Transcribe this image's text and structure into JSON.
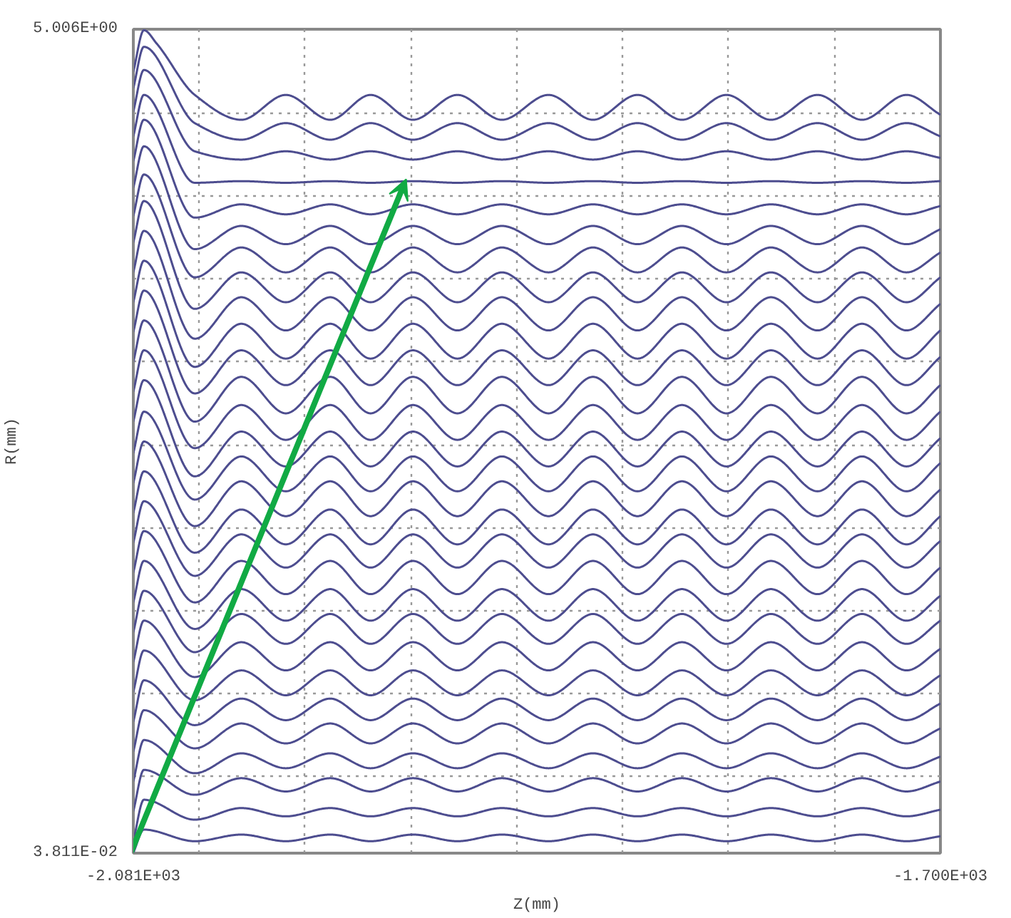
{
  "chart_data": {
    "type": "line",
    "xlabel": "Z(mm)",
    "ylabel": "R(mm)",
    "grid": true,
    "xlim": [
      -2081,
      -1700
    ],
    "ylim": [
      0.03811,
      5.006
    ],
    "xticks": [
      {
        "value": -2081,
        "label": "-2.081E+03"
      },
      {
        "value": -2050,
        "label": null
      },
      {
        "value": -2000,
        "label": null
      },
      {
        "value": -1950,
        "label": null
      },
      {
        "value": -1900,
        "label": null
      },
      {
        "value": -1850,
        "label": null
      },
      {
        "value": -1800,
        "label": null
      },
      {
        "value": -1750,
        "label": null
      },
      {
        "value": -1700,
        "label": "-1.700E+03"
      }
    ],
    "yticks": [
      {
        "value": 0.03811,
        "label": "3.811E-02"
      },
      {
        "value": 0.5,
        "label": null
      },
      {
        "value": 1.0,
        "label": null
      },
      {
        "value": 1.5,
        "label": null
      },
      {
        "value": 2.0,
        "label": null
      },
      {
        "value": 2.5,
        "label": null
      },
      {
        "value": 3.0,
        "label": null
      },
      {
        "value": 3.5,
        "label": null
      },
      {
        "value": 4.0,
        "label": null
      },
      {
        "value": 4.5,
        "label": null
      },
      {
        "value": 5.006,
        "label": "5.006E+00"
      }
    ],
    "x": [
      -2081,
      -2076,
      -2052,
      -2030,
      -2009,
      -1988,
      -1969,
      -1949,
      -1928,
      -1907,
      -1885,
      -1864,
      -1843,
      -1822,
      -1801,
      -1780,
      -1758,
      -1737,
      -1716,
      -1700
    ],
    "series": [
      {
        "color": "#4d4d8f",
        "x": [
          -2081,
          -2076,
          -2070,
          -2052,
          -2030,
          -2009,
          -1988,
          -1969,
          -1949,
          -1928,
          -1907,
          -1885,
          -1864,
          -1843,
          -1822,
          -1801,
          -1780,
          -1758,
          -1737,
          -1716,
          -1700
        ],
        "values": [
          4.75,
          5.0,
          4.92,
          4.61,
          4.46,
          4.61,
          4.46,
          4.61,
          4.46,
          4.61,
          4.46,
          4.61,
          4.46,
          4.61,
          4.46,
          4.61,
          4.46,
          4.61,
          4.46,
          4.61,
          4.49
        ]
      },
      {
        "color": "#4d4d8f",
        "values": [
          4.65,
          4.9,
          4.44,
          4.34,
          4.44,
          4.34,
          4.44,
          4.34,
          4.44,
          4.34,
          4.44,
          4.34,
          4.44,
          4.34,
          4.44,
          4.34,
          4.44,
          4.34,
          4.44,
          4.36
        ]
      },
      {
        "color": "#4d4d8f",
        "values": [
          4.51,
          4.76,
          4.27,
          4.22,
          4.27,
          4.22,
          4.27,
          4.22,
          4.27,
          4.22,
          4.27,
          4.22,
          4.27,
          4.22,
          4.27,
          4.22,
          4.27,
          4.22,
          4.27,
          4.23
        ]
      },
      {
        "color": "#4d4d8f",
        "values": [
          4.36,
          4.61,
          4.08,
          4.09,
          4.08,
          4.09,
          4.08,
          4.09,
          4.08,
          4.09,
          4.08,
          4.09,
          4.08,
          4.09,
          4.08,
          4.09,
          4.08,
          4.09,
          4.08,
          4.09
        ]
      },
      {
        "color": "#4d4d8f",
        "values": [
          4.21,
          4.46,
          3.87,
          3.95,
          3.89,
          3.95,
          3.89,
          3.95,
          3.89,
          3.95,
          3.89,
          3.95,
          3.89,
          3.95,
          3.89,
          3.95,
          3.89,
          3.95,
          3.89,
          3.94
        ]
      },
      {
        "color": "#4d4d8f",
        "values": [
          4.05,
          4.3,
          3.68,
          3.82,
          3.71,
          3.82,
          3.71,
          3.82,
          3.71,
          3.82,
          3.71,
          3.82,
          3.71,
          3.82,
          3.71,
          3.82,
          3.71,
          3.82,
          3.71,
          3.8
        ]
      },
      {
        "color": "#4d4d8f",
        "values": [
          3.88,
          4.13,
          3.51,
          3.69,
          3.54,
          3.69,
          3.54,
          3.69,
          3.54,
          3.69,
          3.54,
          3.69,
          3.54,
          3.69,
          3.54,
          3.69,
          3.54,
          3.69,
          3.54,
          3.66
        ]
      },
      {
        "color": "#4d4d8f",
        "values": [
          3.72,
          3.97,
          3.32,
          3.54,
          3.36,
          3.54,
          3.36,
          3.54,
          3.36,
          3.54,
          3.36,
          3.54,
          3.36,
          3.54,
          3.36,
          3.54,
          3.36,
          3.54,
          3.36,
          3.51
        ]
      },
      {
        "color": "#4d4d8f",
        "values": [
          3.54,
          3.79,
          3.14,
          3.39,
          3.19,
          3.39,
          3.19,
          3.39,
          3.19,
          3.39,
          3.19,
          3.39,
          3.19,
          3.39,
          3.19,
          3.39,
          3.19,
          3.39,
          3.19,
          3.35
        ]
      },
      {
        "color": "#4d4d8f",
        "values": [
          3.36,
          3.61,
          2.97,
          3.23,
          3.02,
          3.23,
          3.02,
          3.23,
          3.02,
          3.23,
          3.02,
          3.23,
          3.02,
          3.23,
          3.02,
          3.23,
          3.02,
          3.23,
          3.02,
          3.19
        ]
      },
      {
        "color": "#4d4d8f",
        "values": [
          3.18,
          3.43,
          2.81,
          3.07,
          2.86,
          3.07,
          2.86,
          3.07,
          2.86,
          3.07,
          2.86,
          3.07,
          2.86,
          3.07,
          2.86,
          3.07,
          2.86,
          3.07,
          2.86,
          3.03
        ]
      },
      {
        "color": "#4d4d8f",
        "values": [
          3.0,
          3.25,
          2.64,
          2.91,
          2.69,
          2.91,
          2.69,
          2.91,
          2.69,
          2.91,
          2.69,
          2.91,
          2.69,
          2.91,
          2.69,
          2.91,
          2.69,
          2.91,
          2.69,
          2.86
        ]
      },
      {
        "color": "#4d4d8f",
        "values": [
          2.82,
          3.07,
          2.48,
          2.74,
          2.53,
          2.74,
          2.53,
          2.74,
          2.53,
          2.74,
          2.53,
          2.74,
          2.53,
          2.74,
          2.53,
          2.74,
          2.53,
          2.74,
          2.53,
          2.7
        ]
      },
      {
        "color": "#4d4d8f",
        "values": [
          2.64,
          2.89,
          2.31,
          2.58,
          2.37,
          2.58,
          2.37,
          2.58,
          2.37,
          2.58,
          2.37,
          2.58,
          2.37,
          2.58,
          2.37,
          2.58,
          2.37,
          2.58,
          2.37,
          2.54
        ]
      },
      {
        "color": "#4d4d8f",
        "values": [
          2.45,
          2.7,
          2.17,
          2.43,
          2.22,
          2.43,
          2.22,
          2.43,
          2.22,
          2.43,
          2.22,
          2.43,
          2.22,
          2.43,
          2.22,
          2.43,
          2.22,
          2.43,
          2.22,
          2.39
        ]
      },
      {
        "color": "#4d4d8f",
        "values": [
          2.27,
          2.52,
          2.01,
          2.28,
          2.07,
          2.28,
          2.07,
          2.28,
          2.07,
          2.28,
          2.07,
          2.28,
          2.07,
          2.28,
          2.07,
          2.28,
          2.07,
          2.28,
          2.07,
          2.23
        ]
      },
      {
        "color": "#4d4d8f",
        "values": [
          2.09,
          2.34,
          1.85,
          2.11,
          1.9,
          2.11,
          1.9,
          2.11,
          1.9,
          2.11,
          1.9,
          2.11,
          1.9,
          2.11,
          1.9,
          2.11,
          1.9,
          2.11,
          1.9,
          2.07
        ]
      },
      {
        "color": "#4d4d8f",
        "values": [
          1.91,
          2.16,
          1.71,
          1.96,
          1.76,
          1.96,
          1.76,
          1.96,
          1.76,
          1.96,
          1.76,
          1.96,
          1.76,
          1.96,
          1.76,
          1.96,
          1.76,
          1.96,
          1.76,
          1.92
        ]
      },
      {
        "color": "#4d4d8f",
        "values": [
          1.73,
          1.98,
          1.55,
          1.8,
          1.6,
          1.8,
          1.6,
          1.8,
          1.6,
          1.8,
          1.6,
          1.8,
          1.6,
          1.8,
          1.6,
          1.8,
          1.6,
          1.8,
          1.6,
          1.76
        ]
      },
      {
        "color": "#4d4d8f",
        "values": [
          1.55,
          1.8,
          1.39,
          1.63,
          1.44,
          1.63,
          1.44,
          1.63,
          1.44,
          1.63,
          1.44,
          1.63,
          1.44,
          1.63,
          1.44,
          1.63,
          1.44,
          1.63,
          1.44,
          1.59
        ]
      },
      {
        "color": "#4d4d8f",
        "values": [
          1.37,
          1.62,
          1.25,
          1.48,
          1.3,
          1.48,
          1.3,
          1.48,
          1.3,
          1.48,
          1.3,
          1.48,
          1.3,
          1.48,
          1.3,
          1.48,
          1.3,
          1.48,
          1.3,
          1.44
        ]
      },
      {
        "color": "#4d4d8f",
        "values": [
          1.19,
          1.44,
          1.1,
          1.31,
          1.14,
          1.31,
          1.14,
          1.31,
          1.14,
          1.31,
          1.14,
          1.31,
          1.14,
          1.31,
          1.14,
          1.31,
          1.14,
          1.31,
          1.14,
          1.27
        ]
      },
      {
        "color": "#4d4d8f",
        "values": [
          1.01,
          1.26,
          0.96,
          1.14,
          0.99,
          1.14,
          0.99,
          1.14,
          0.99,
          1.14,
          0.99,
          1.14,
          0.99,
          1.14,
          0.99,
          1.14,
          0.99,
          1.14,
          0.99,
          1.11
        ]
      },
      {
        "color": "#4d4d8f",
        "values": [
          0.83,
          1.08,
          0.81,
          0.97,
          0.84,
          0.97,
          0.84,
          0.97,
          0.84,
          0.97,
          0.84,
          0.97,
          0.84,
          0.97,
          0.84,
          0.97,
          0.84,
          0.97,
          0.84,
          0.94
        ]
      },
      {
        "color": "#4d4d8f",
        "values": [
          0.65,
          0.9,
          0.67,
          0.82,
          0.7,
          0.82,
          0.7,
          0.82,
          0.7,
          0.82,
          0.7,
          0.82,
          0.7,
          0.82,
          0.7,
          0.82,
          0.7,
          0.82,
          0.7,
          0.79
        ]
      },
      {
        "color": "#4d4d8f",
        "values": [
          0.47,
          0.72,
          0.52,
          0.64,
          0.55,
          0.64,
          0.55,
          0.64,
          0.55,
          0.64,
          0.55,
          0.64,
          0.55,
          0.64,
          0.55,
          0.64,
          0.55,
          0.64,
          0.55,
          0.62
        ]
      },
      {
        "color": "#4d4d8f",
        "values": [
          0.29,
          0.54,
          0.39,
          0.49,
          0.41,
          0.49,
          0.41,
          0.49,
          0.41,
          0.49,
          0.41,
          0.49,
          0.41,
          0.49,
          0.41,
          0.49,
          0.41,
          0.49,
          0.41,
          0.47
        ]
      },
      {
        "color": "#4d4d8f",
        "values": [
          0.11,
          0.36,
          0.24,
          0.31,
          0.26,
          0.31,
          0.26,
          0.31,
          0.26,
          0.31,
          0.26,
          0.31,
          0.26,
          0.31,
          0.26,
          0.31,
          0.26,
          0.31,
          0.26,
          0.3
        ]
      },
      {
        "color": "#4d4d8f",
        "values": [
          0.04,
          0.18,
          0.11,
          0.15,
          0.11,
          0.15,
          0.11,
          0.15,
          0.11,
          0.15,
          0.11,
          0.15,
          0.11,
          0.15,
          0.11,
          0.15,
          0.11,
          0.15,
          0.11,
          0.14
        ]
      }
    ]
  }
}
